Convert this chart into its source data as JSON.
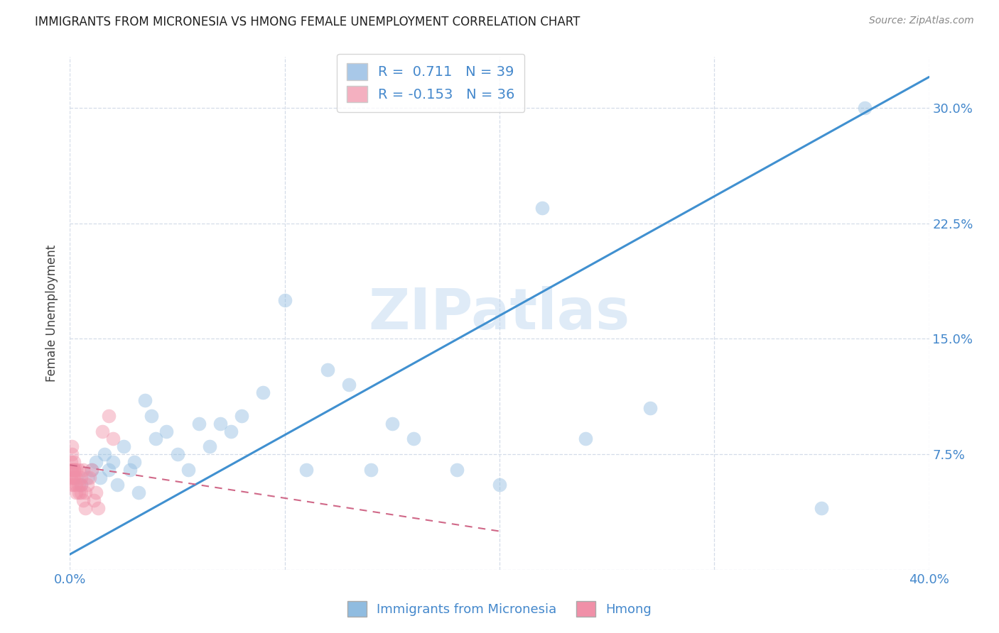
{
  "title": "IMMIGRANTS FROM MICRONESIA VS HMONG FEMALE UNEMPLOYMENT CORRELATION CHART",
  "source": "Source: ZipAtlas.com",
  "ylabel": "Female Unemployment",
  "watermark": "ZIPatlas",
  "xmin": 0.0,
  "xmax": 0.4,
  "ymin": 0.0,
  "ymax": 0.333,
  "legend_entries": [
    {
      "label": "R =  0.711   N = 39",
      "color": "#a8c8e8"
    },
    {
      "label": "R = -0.153   N = 36",
      "color": "#f4b0c0"
    }
  ],
  "legend_label1": "Immigrants from Micronesia",
  "legend_label2": "Hmong",
  "blue_scatter_x": [
    0.005,
    0.008,
    0.01,
    0.012,
    0.014,
    0.016,
    0.018,
    0.02,
    0.022,
    0.025,
    0.028,
    0.03,
    0.032,
    0.035,
    0.038,
    0.04,
    0.045,
    0.05,
    0.055,
    0.06,
    0.065,
    0.07,
    0.075,
    0.08,
    0.09,
    0.1,
    0.11,
    0.12,
    0.13,
    0.14,
    0.15,
    0.16,
    0.18,
    0.2,
    0.22,
    0.24,
    0.27,
    0.35,
    0.37
  ],
  "blue_scatter_y": [
    0.055,
    0.06,
    0.065,
    0.07,
    0.06,
    0.075,
    0.065,
    0.07,
    0.055,
    0.08,
    0.065,
    0.07,
    0.05,
    0.11,
    0.1,
    0.085,
    0.09,
    0.075,
    0.065,
    0.095,
    0.08,
    0.095,
    0.09,
    0.1,
    0.115,
    0.175,
    0.065,
    0.13,
    0.12,
    0.065,
    0.095,
    0.085,
    0.065,
    0.055,
    0.235,
    0.085,
    0.105,
    0.04,
    0.3
  ],
  "pink_scatter_x": [
    0.0005,
    0.0005,
    0.0005,
    0.001,
    0.001,
    0.001,
    0.001,
    0.0015,
    0.0015,
    0.002,
    0.002,
    0.002,
    0.002,
    0.003,
    0.003,
    0.003,
    0.003,
    0.004,
    0.004,
    0.004,
    0.005,
    0.005,
    0.005,
    0.006,
    0.006,
    0.007,
    0.007,
    0.008,
    0.009,
    0.01,
    0.011,
    0.012,
    0.013,
    0.015,
    0.018,
    0.02
  ],
  "pink_scatter_y": [
    0.065,
    0.07,
    0.06,
    0.055,
    0.065,
    0.075,
    0.08,
    0.06,
    0.055,
    0.065,
    0.07,
    0.065,
    0.06,
    0.06,
    0.055,
    0.065,
    0.05,
    0.065,
    0.05,
    0.055,
    0.06,
    0.05,
    0.055,
    0.065,
    0.045,
    0.05,
    0.04,
    0.055,
    0.06,
    0.065,
    0.045,
    0.05,
    0.04,
    0.09,
    0.1,
    0.085
  ],
  "blue_line_x": [
    0.0,
    0.4
  ],
  "blue_line_y": [
    0.01,
    0.32
  ],
  "pink_line_x": [
    0.0,
    0.2
  ],
  "pink_line_y": [
    0.068,
    0.025
  ],
  "scatter_size": 200,
  "scatter_alpha": 0.45,
  "blue_color": "#90bce0",
  "pink_color": "#f090a8",
  "blue_line_color": "#4090d0",
  "pink_line_color": "#d06888",
  "grid_color": "#d4dce8",
  "background_color": "#ffffff",
  "title_color": "#202020",
  "axis_label_color": "#4488cc",
  "source_color": "#888888"
}
